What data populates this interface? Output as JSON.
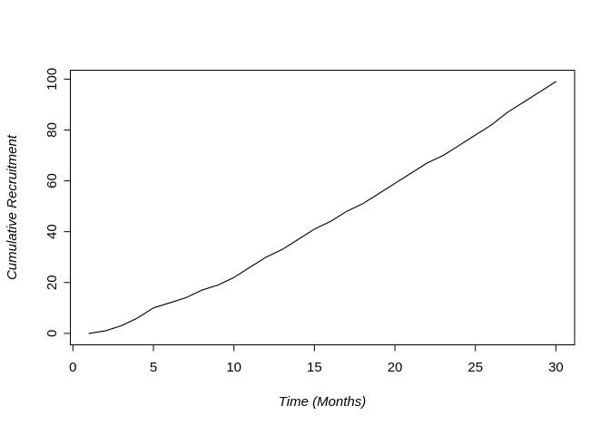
{
  "figure": {
    "background": "#ffffff",
    "description": "R base-graphics line plot of cumulative recruitment over time"
  },
  "chart_data": {
    "type": "line",
    "title": "",
    "xlabel": "Time (Months)",
    "ylabel": "Cumulative Recruitment",
    "x": [
      1,
      2,
      3,
      4,
      5,
      6,
      7,
      8,
      9,
      10,
      11,
      12,
      13,
      14,
      15,
      16,
      17,
      18,
      19,
      20,
      21,
      22,
      23,
      24,
      25,
      26,
      27,
      28,
      29,
      30
    ],
    "values": [
      0,
      1,
      3,
      6,
      10,
      12,
      14,
      17,
      19,
      22,
      26,
      30,
      33,
      37,
      41,
      44,
      48,
      51,
      55,
      59,
      63,
      67,
      70,
      74,
      78,
      82,
      87,
      91,
      95,
      99
    ],
    "x_ticks": [
      0,
      5,
      10,
      15,
      20,
      25,
      30
    ],
    "y_ticks": [
      0,
      20,
      40,
      60,
      80,
      100
    ],
    "xlim": [
      -0.16,
      31.16
    ],
    "ylim": [
      -4.5,
      103.5
    ],
    "grid": false,
    "legend": "none",
    "line_color": "#000000",
    "axis_color": "#000000",
    "text_color": "#000000"
  }
}
